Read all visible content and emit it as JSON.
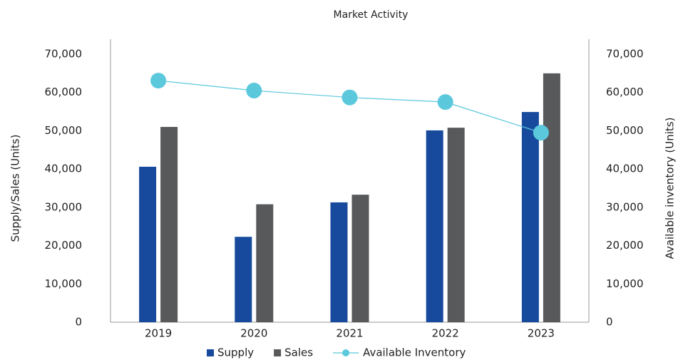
{
  "chart_data": {
    "type": "bar",
    "title": "Market Activity",
    "categories": [
      "2019",
      "2020",
      "2021",
      "2022",
      "2023"
    ],
    "ylabel": "Supply/Sales (Units)",
    "y2label": "Available inventory (Units)",
    "ylim": [
      0,
      70000
    ],
    "yticks": [
      0,
      {
        "value": 10000,
        "label": "10,000"
      },
      {
        "value": 20000,
        "label": "20,000"
      },
      {
        "value": 30000,
        "label": "30,000"
      },
      {
        "value": 40000,
        "label": "40,000"
      },
      {
        "value": 50000,
        "label": "50,000"
      },
      {
        "value": 60000,
        "label": "60,000"
      },
      {
        "value": 70000,
        "label": "70,000"
      }
    ],
    "y2lim": [
      0,
      70000
    ],
    "y2ticks": [
      0,
      {
        "value": 10000,
        "label": "10,000"
      },
      {
        "value": 20000,
        "label": "20,000"
      },
      {
        "value": 30000,
        "label": "30,000"
      },
      {
        "value": 40000,
        "label": "40,000"
      },
      {
        "value": 50000,
        "label": "50,000"
      },
      {
        "value": 60000,
        "label": "60,000"
      },
      {
        "value": 70000,
        "label": "70,000"
      }
    ],
    "legend": "bottom",
    "series": [
      {
        "name": "Supply",
        "type": "bar",
        "color": "#174a9c",
        "values": [
          40600,
          22300,
          31300,
          50100,
          54900
        ]
      },
      {
        "name": "Sales",
        "type": "bar",
        "color": "#58595b",
        "values": [
          51000,
          30800,
          33300,
          50800,
          65000
        ]
      },
      {
        "name": "Available Inventory",
        "type": "line",
        "axis": "y2",
        "color": "#5bc8dc",
        "values": [
          63100,
          60500,
          58700,
          57500,
          49500
        ]
      }
    ]
  }
}
